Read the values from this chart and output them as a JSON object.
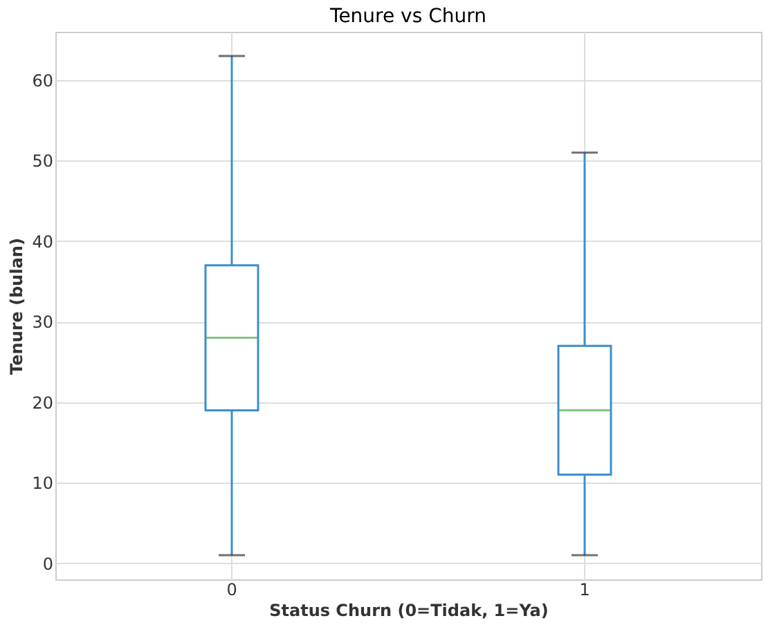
{
  "chart_data": {
    "type": "box",
    "title": "Tenure vs Churn",
    "xlabel": "Status Churn (0=Tidak, 1=Ya)",
    "ylabel": "Tenure (bulan)",
    "categories": [
      "0",
      "1"
    ],
    "series": [
      {
        "color": "#3a8fd0",
        "boxes": [
          {
            "low": 1,
            "q1": 19,
            "median": 28,
            "q3": 37,
            "high": 63
          },
          {
            "low": 1,
            "q1": 11,
            "median": 19,
            "q3": 27,
            "high": 51
          }
        ]
      }
    ],
    "ylim": [
      -2,
      66
    ],
    "yticks": [
      0,
      10,
      20,
      30,
      40,
      50,
      60
    ],
    "grid": true
  }
}
